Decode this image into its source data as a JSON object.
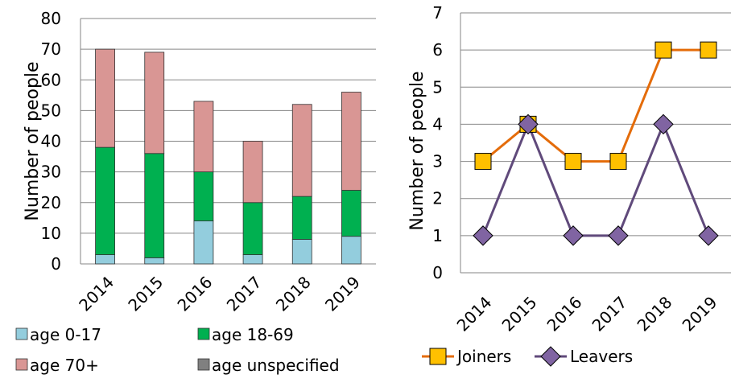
{
  "chart_data": [
    {
      "type": "bar",
      "stacked": true,
      "ylabel": "Number of people",
      "ylim": [
        0,
        80
      ],
      "yticks": [
        0,
        10,
        20,
        30,
        40,
        50,
        60,
        70,
        80
      ],
      "grid": true,
      "legend_position": "bottom",
      "categories": [
        "2014",
        "2015",
        "2016",
        "2017",
        "2018",
        "2019"
      ],
      "series": [
        {
          "name": "age 0-17",
          "color": "#93CDDD",
          "values": [
            3,
            2,
            14,
            3,
            8,
            9
          ]
        },
        {
          "name": "age 18-69",
          "color": "#00B050",
          "values": [
            35,
            34,
            16,
            17,
            14,
            15
          ]
        },
        {
          "name": "age 70+",
          "color": "#D99694",
          "values": [
            32,
            33,
            23,
            20,
            30,
            32
          ]
        },
        {
          "name": "age unspecified",
          "color": "#808080",
          "values": [
            0,
            0,
            0,
            0,
            0,
            0
          ]
        }
      ]
    },
    {
      "type": "line",
      "ylabel": "Number of people",
      "ylim": [
        0,
        7
      ],
      "yticks": [
        0,
        1,
        2,
        3,
        4,
        5,
        6,
        7
      ],
      "grid": true,
      "legend_position": "bottom",
      "categories": [
        "2014",
        "2015",
        "2016",
        "2017",
        "2018",
        "2019"
      ],
      "series": [
        {
          "name": "Joiners",
          "color": "#E46C0A",
          "marker_color": "#FFC000",
          "marker": "square",
          "values": [
            3,
            4,
            3,
            3,
            6,
            6
          ]
        },
        {
          "name": "Leavers",
          "color": "#604A7B",
          "marker_color": "#8064A2",
          "marker": "diamond",
          "values": [
            1,
            4,
            1,
            1,
            4,
            1
          ]
        }
      ]
    }
  ]
}
